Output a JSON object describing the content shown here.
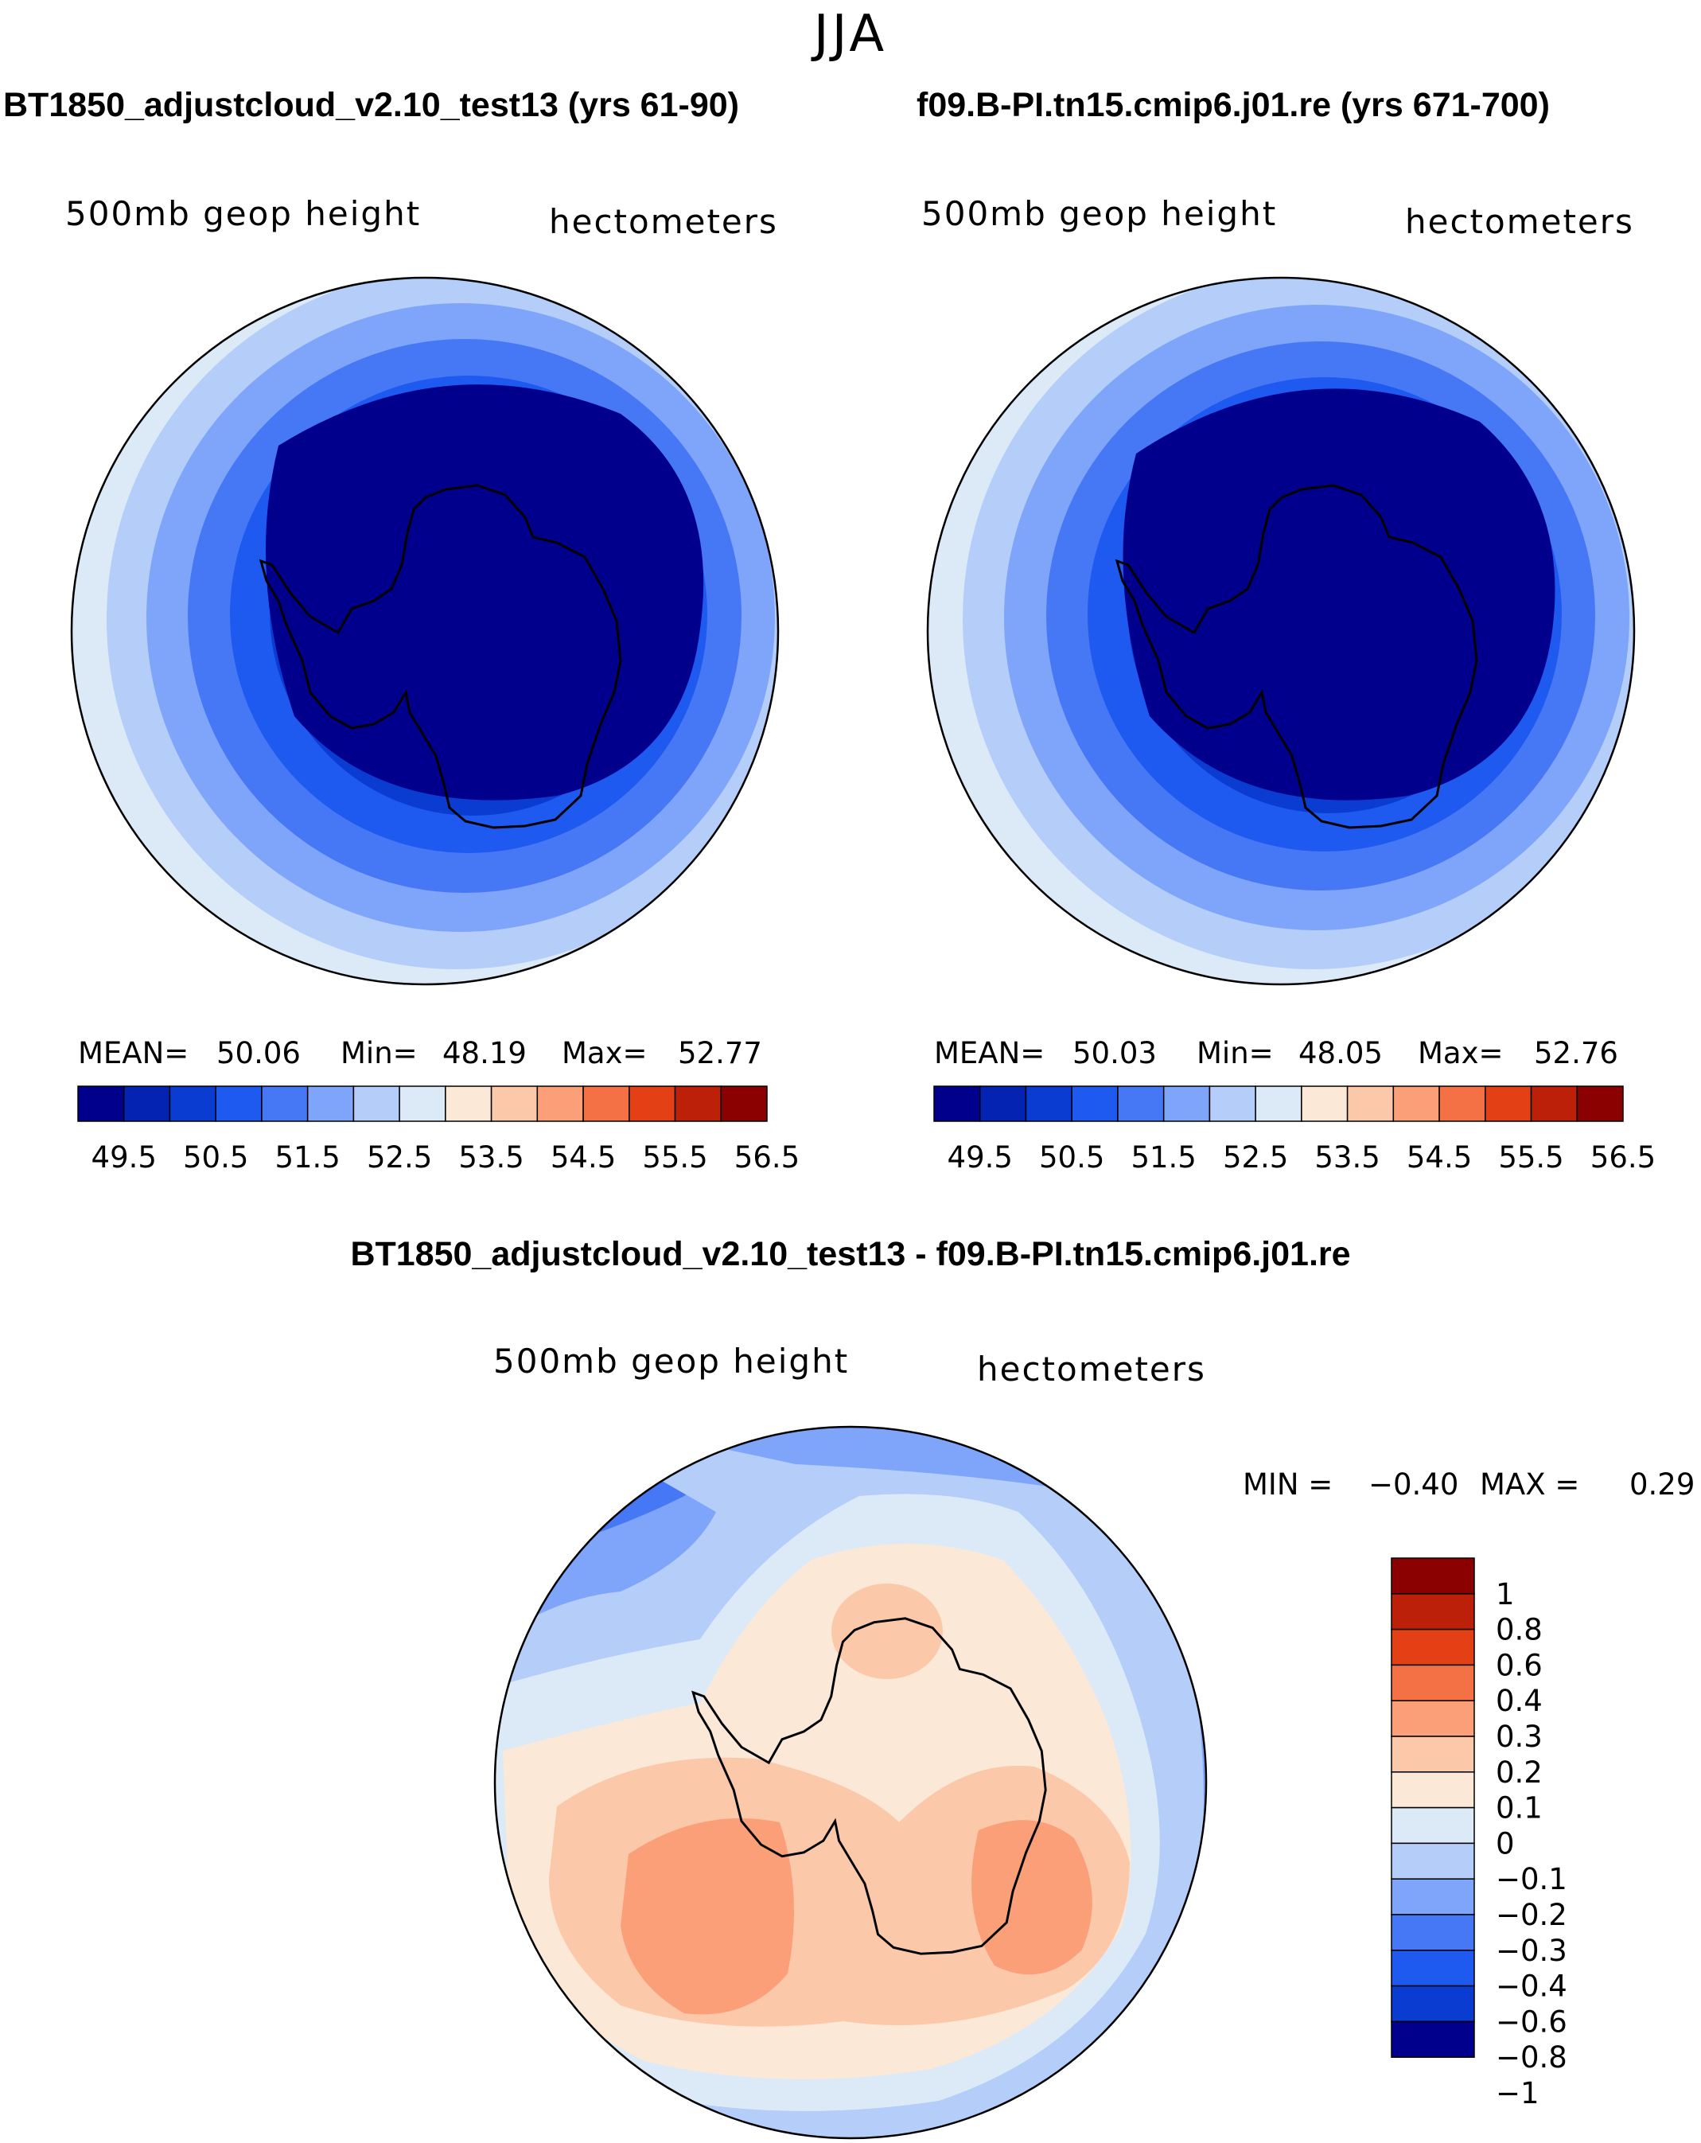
{
  "season": "JJA",
  "panels": [
    {
      "title": "BT1850_adjustcloud_v2.10_test13 (yrs 61-90)",
      "variable": "500mb geop height",
      "units": "hectometers",
      "mean_label": "MEAN=",
      "mean": "50.06",
      "min_label": "Min=",
      "min": "48.19",
      "max_label": "Max=",
      "max": "52.77"
    },
    {
      "title": "f09.B-PI.tn15.cmip6.j01.re (yrs 671-700)",
      "variable": "500mb geop height",
      "units": "hectometers",
      "mean_label": "MEAN=",
      "mean": "50.03",
      "min_label": "Min=",
      "min": "48.05",
      "max_label": "Max=",
      "max": "52.76"
    }
  ],
  "abs_colorbar": {
    "colors": [
      "#00008c",
      "#0523b2",
      "#0a3cd2",
      "#1e5af0",
      "#4678f5",
      "#7ea5fa",
      "#b4cdf9",
      "#dceaf8",
      "#fce8d6",
      "#fbc8aa",
      "#fa9f78",
      "#f47146",
      "#e34016",
      "#bc2008",
      "#8b0000"
    ],
    "ticks": [
      "49.5",
      "50.5",
      "51.5",
      "52.5",
      "53.5",
      "54.5",
      "55.5",
      "56.5"
    ]
  },
  "diff": {
    "title": "BT1850_adjustcloud_v2.10_test13 - f09.B-PI.tn15.cmip6.j01.re",
    "variable": "500mb geop height",
    "units": "hectometers",
    "min_label": "MIN =",
    "min": "−0.40",
    "max_label": "MAX =",
    "max": "0.29"
  },
  "diff_colorbar": {
    "colors_top_to_bottom": [
      "#8b0000",
      "#bc2008",
      "#e34016",
      "#f47146",
      "#fa9f78",
      "#fbc8aa",
      "#fce8d6",
      "#dceaf8",
      "#b4cdf9",
      "#7ea5fa",
      "#4678f5",
      "#1e5af0",
      "#0a3cd2",
      "#00008c"
    ],
    "labels_top_to_bottom": [
      "1",
      "0.8",
      "0.6",
      "0.4",
      "0.3",
      "0.2",
      "0.1",
      "0",
      "−0.1",
      "−0.2",
      "−0.3",
      "−0.4",
      "−0.6",
      "−0.8",
      "−1"
    ]
  },
  "colors": {
    "coast": "#000000",
    "outline": "#000000"
  }
}
